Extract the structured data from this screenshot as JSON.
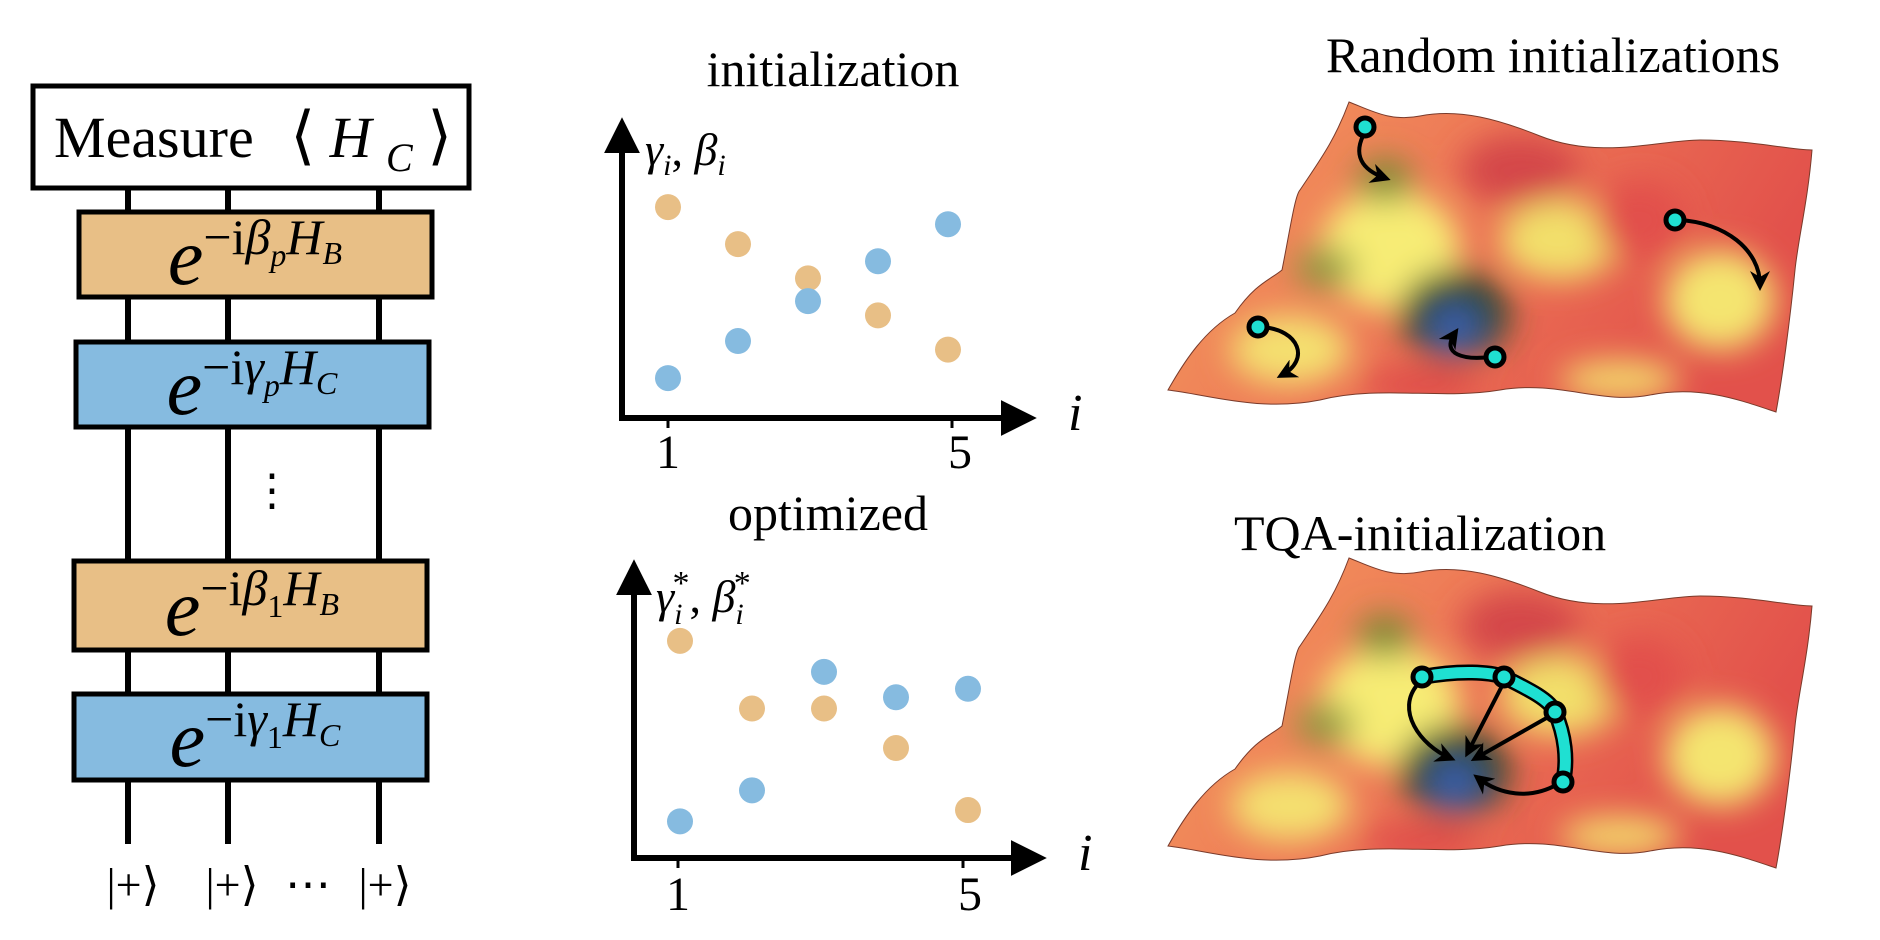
{
  "colors": {
    "beta_orange": "#e8bf86",
    "gamma_blue": "#86bbe0",
    "cyan_marker": "#1fe0d2",
    "minimum_blue": "#3d5fae",
    "landscape_red": "#e2514b",
    "landscape_yellow": "#f6eb74"
  },
  "circuit": {
    "measure": {
      "word": "Measure",
      "lbra": "⟨",
      "op": "H",
      "op_sub": "C",
      "rket": "⟩"
    },
    "gates": [
      {
        "base": "e",
        "prefix": "−i",
        "param": "β",
        "param_sub": "p",
        "op": "H",
        "op_sub": "B",
        "kind": "mixer"
      },
      {
        "base": "e",
        "prefix": "−i",
        "param": "γ",
        "param_sub": "p",
        "op": "H",
        "op_sub": "C",
        "kind": "cost"
      },
      {
        "base": "e",
        "prefix": "−i",
        "param": "β",
        "param_sub": "1",
        "op": "H",
        "op_sub": "B",
        "kind": "mixer"
      },
      {
        "base": "e",
        "prefix": "−i",
        "param": "γ",
        "param_sub": "1",
        "op": "H",
        "op_sub": "C",
        "kind": "cost"
      }
    ],
    "vdots": "⋮",
    "inputs": [
      "|+⟩",
      "|+⟩",
      "⋯",
      "|+⟩"
    ]
  },
  "chart_data": [
    {
      "type": "scatter",
      "title": "initialization",
      "ylabel": {
        "gamma": "γ",
        "sub1": "i",
        "sep": ", ",
        "beta": "β",
        "sub2": "i"
      },
      "xlabel": "i",
      "x_ticks": [
        "1",
        "5"
      ],
      "x": [
        1,
        2,
        3,
        4,
        5
      ],
      "ylim": [
        0,
        1
      ],
      "grid": false,
      "series": [
        {
          "color": "#e8bf86",
          "values": [
            0.74,
            0.61,
            0.49,
            0.36,
            0.24
          ]
        },
        {
          "color": "#86bbe0",
          "values": [
            0.14,
            0.27,
            0.41,
            0.55,
            0.68
          ]
        }
      ]
    },
    {
      "type": "scatter",
      "title": "optimized",
      "ylabel": {
        "gamma": "γ",
        "sub1": "i",
        "sup1": "*",
        "sep": ", ",
        "beta": "β",
        "sub2": "i",
        "sup2": "*"
      },
      "xlabel": "i",
      "x_ticks": [
        "1",
        "5"
      ],
      "x": [
        1,
        2,
        3,
        4,
        5
      ],
      "ylim": [
        0,
        1
      ],
      "grid": false,
      "series": [
        {
          "color": "#e8bf86",
          "values": [
            0.77,
            0.53,
            0.53,
            0.39,
            0.17
          ]
        },
        {
          "color": "#86bbe0",
          "values": [
            0.13,
            0.24,
            0.66,
            0.57,
            0.6
          ]
        }
      ]
    }
  ],
  "landscapes": {
    "random": {
      "title": "Random initializations"
    },
    "tqa": {
      "title": "TQA-initialization"
    }
  }
}
